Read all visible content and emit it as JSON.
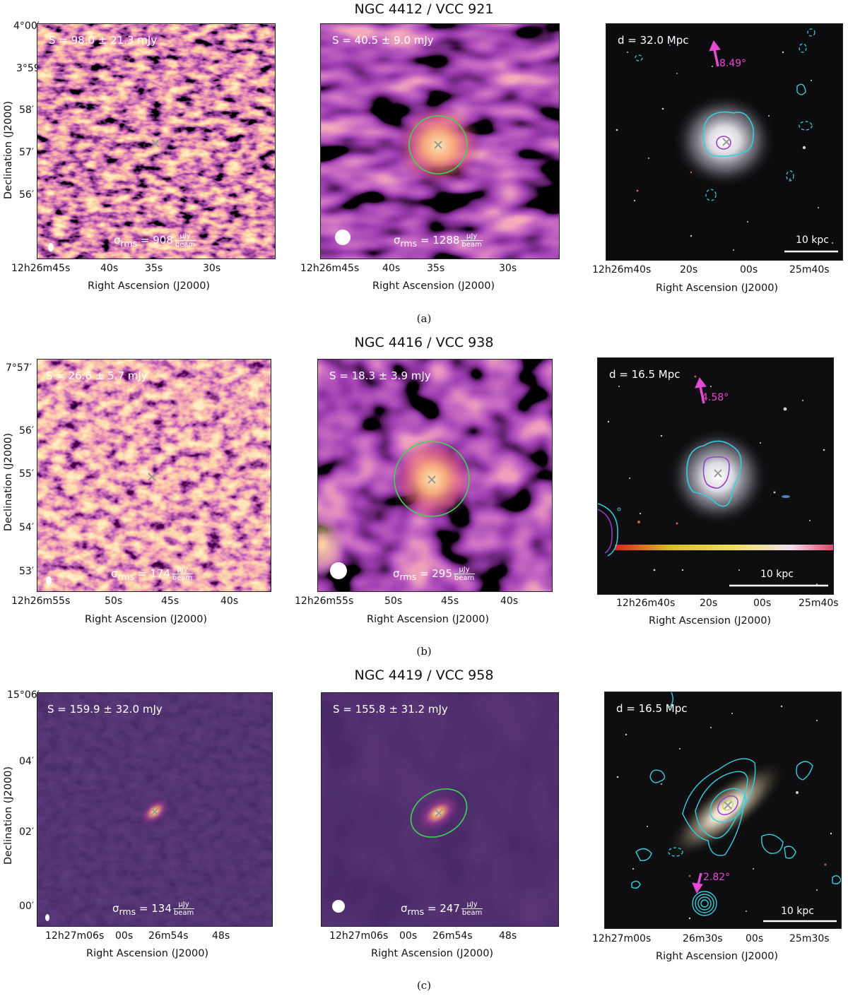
{
  "rows": [
    {
      "title": "NGC 4412 / VCC 921",
      "caption": "(a)",
      "yticks": [
        "4°00′",
        "3°59′",
        "58′",
        "57′",
        "56′"
      ],
      "ylabel": "Declination (J2000)",
      "xlabel": "Right Ascension (J2000)",
      "panels": [
        {
          "flux": "S = 98.0 ± 21.3 mJy",
          "rms_value": "908",
          "xticks": [
            "12h26m45s",
            "40s",
            "35s",
            "30s"
          ]
        },
        {
          "flux": "S = 40.5 ± 9.0 mJy",
          "rms_value": "1288",
          "xticks": [
            "12h26m45s",
            "40s",
            "35s",
            "30s"
          ]
        },
        {
          "distance": "d = 32.0 Mpc",
          "angle": "8.49°",
          "scale": "10 kpc",
          "xticks": [
            "12h26m40s",
            "20s",
            "00s",
            "25m40s"
          ]
        }
      ]
    },
    {
      "title": "NGC 4416 / VCC 938",
      "caption": "(b)",
      "yticks": [
        "7°57′",
        "56′",
        "55′",
        "54′",
        "53′"
      ],
      "ylabel": "Declination (J2000)",
      "xlabel": "Right Ascension (J2000)",
      "panels": [
        {
          "flux": "S = 26.6 ± 5.7 mJy",
          "rms_value": "174",
          "xticks": [
            "12h26m55s",
            "50s",
            "45s",
            "40s"
          ]
        },
        {
          "flux": "S = 18.3 ± 3.9 mJy",
          "rms_value": "295",
          "xticks": [
            "12h26m55s",
            "50s",
            "45s",
            "40s"
          ]
        },
        {
          "distance": "d = 16.5 Mpc",
          "angle": "4.58°",
          "scale": "10 kpc",
          "xticks": [
            "12h26m40s",
            "20s",
            "00s",
            "25m40s"
          ]
        }
      ]
    },
    {
      "title": "NGC 4419 / VCC 958",
      "caption": "(c)",
      "yticks": [
        "15°06′",
        "04′",
        "02′",
        "00′"
      ],
      "ylabel": "Declination (J2000)",
      "xlabel": "Right Ascension (J2000)",
      "panels": [
        {
          "flux": "S = 159.9 ± 32.0 mJy",
          "rms_value": "134",
          "xticks": [
            "12h27m06s",
            "00s",
            "26m54s",
            "48s"
          ]
        },
        {
          "flux": "S = 155.8 ± 31.2 mJy",
          "rms_value": "247",
          "xticks": [
            "12h27m06s",
            "00s",
            "26m54s",
            "48s"
          ]
        },
        {
          "distance": "d = 16.5 Mpc",
          "angle": "2.82°",
          "scale": "10 kpc",
          "xticks": [
            "12h27m00s",
            "26m30s",
            "00s",
            "25m30s"
          ]
        }
      ]
    }
  ],
  "rms_symbol": "σ",
  "rms_sub": "rms",
  "rms_unit_num": "µJy",
  "rms_unit_den": "beam"
}
